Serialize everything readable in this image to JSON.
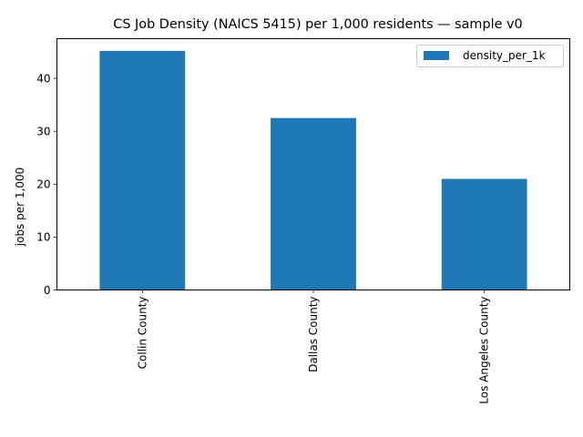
{
  "chart_data": {
    "type": "bar",
    "title": "CS Job Density (NAICS 5415) per 1,000 residents — sample v0",
    "xlabel": "",
    "ylabel": "jobs per 1,000",
    "categories": [
      "Collin County",
      "Dallas County",
      "Los Angeles County"
    ],
    "series": [
      {
        "name": "density_per_1k",
        "values": [
          45.2,
          32.5,
          21.0
        ],
        "color": "#1f77b4"
      }
    ],
    "ylim": [
      0,
      47.5
    ],
    "yticks": [
      0,
      10,
      20,
      30,
      40
    ],
    "grid": false,
    "legend": "top-right"
  }
}
